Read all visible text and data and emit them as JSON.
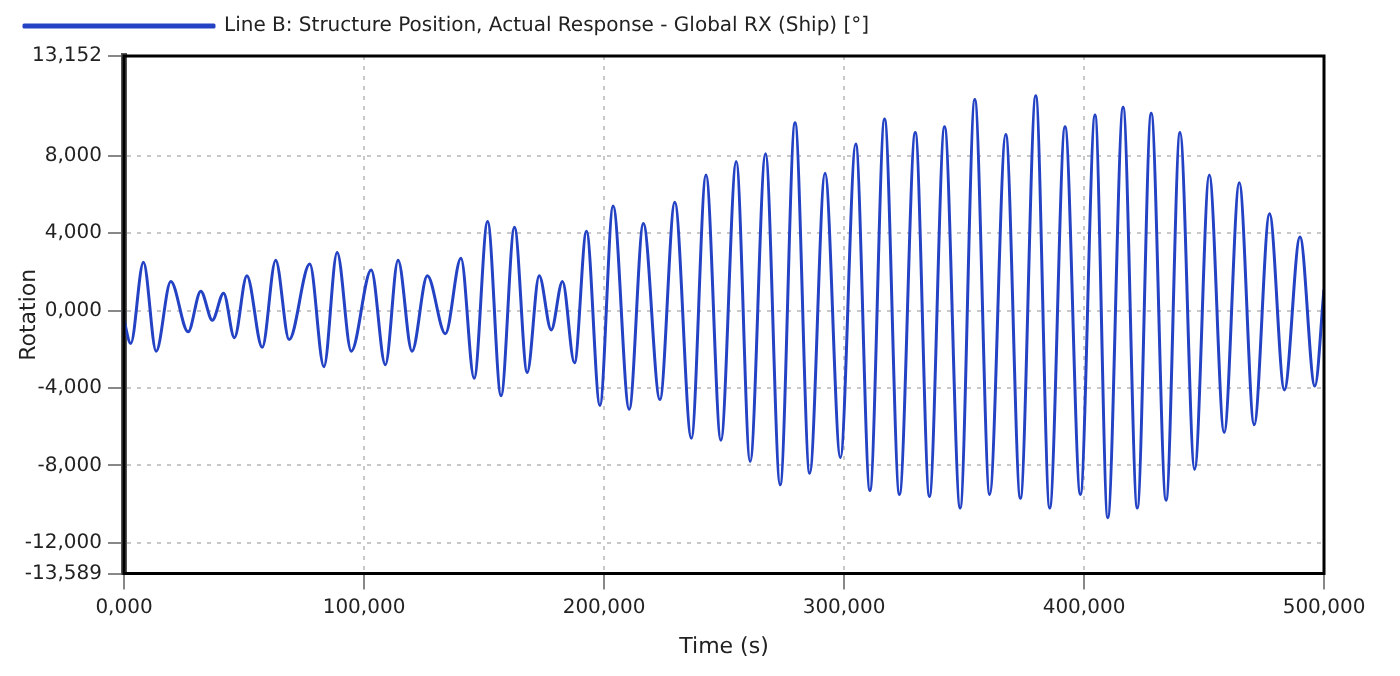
{
  "chart_data": {
    "type": "line",
    "xlabel": "Time (s)",
    "ylabel": "Rotation",
    "x": [
      0,
      2.8,
      8.1,
      13.4,
      19.5,
      26.7,
      32,
      36.8,
      41.5,
      46,
      51.2,
      57.6,
      63.2,
      68.8,
      77.4,
      83.3,
      88.8,
      94.7,
      103,
      108.9,
      114.2,
      120,
      126.4,
      133.9,
      140.4,
      145.9,
      151.5,
      157.1,
      162.7,
      168,
      173,
      178,
      182.7,
      187.7,
      192.7,
      198.3,
      203.8,
      210.5,
      216.4,
      223.3,
      229.5,
      236.4,
      242.5,
      248.7,
      255.1,
      260.9,
      267.3,
      273.4,
      279.6,
      285.7,
      292.1,
      298.5,
      304.9,
      310.8,
      316.9,
      323.1,
      329.7,
      335.6,
      341.9,
      348.4,
      354.5,
      360.7,
      367.4,
      373.5,
      379.9,
      385.7,
      392.1,
      398.5,
      404.6,
      409.9,
      416.3,
      422.2,
      428,
      434.2,
      440,
      446.1,
      452.2,
      458.4,
      464.7,
      470.9,
      477.3,
      483.5,
      490,
      496.2,
      500
    ],
    "series": [
      {
        "name": "Line B: Structure Position, Actual Response - Global RX (Ship) [°]",
        "color": "#2442c4",
        "values": [
          -0.5,
          -1.7,
          2.5,
          -2.1,
          1.5,
          -1.1,
          1.0,
          -0.5,
          0.9,
          -1.4,
          1.8,
          -1.9,
          2.6,
          -1.5,
          2.4,
          -2.9,
          3.0,
          -2.1,
          2.1,
          -2.8,
          2.6,
          -2.1,
          1.8,
          -1.2,
          2.7,
          -3.5,
          4.6,
          -4.4,
          4.3,
          -3.2,
          1.8,
          -1.0,
          1.5,
          -2.7,
          4.1,
          -4.9,
          5.4,
          -5.1,
          4.5,
          -4.6,
          5.6,
          -6.6,
          7.0,
          -6.7,
          7.7,
          -7.8,
          8.1,
          -9.0,
          9.7,
          -8.4,
          7.1,
          -7.6,
          8.6,
          -9.3,
          9.9,
          -9.5,
          9.2,
          -9.6,
          9.5,
          -10.2,
          10.9,
          -9.5,
          9.1,
          -9.7,
          11.1,
          -10.2,
          9.5,
          -9.5,
          10.1,
          -10.7,
          10.5,
          -10.2,
          10.2,
          -9.8,
          9.2,
          -8.2,
          7.0,
          -6.3,
          6.6,
          -5.9,
          5.0,
          -4.1,
          3.8,
          -3.9,
          1.1
        ]
      }
    ],
    "xlim": [
      0,
      500
    ],
    "xticks": [
      {
        "value": 0,
        "label": "0,000"
      },
      {
        "value": 100,
        "label": "100,000"
      },
      {
        "value": 200,
        "label": "200,000"
      },
      {
        "value": 300,
        "label": "300,000"
      },
      {
        "value": 400,
        "label": "400,000"
      },
      {
        "value": 500,
        "label": "500,000"
      }
    ],
    "ylim": [
      -13.589,
      13.152
    ],
    "yticks": [
      {
        "value": -13.589,
        "label": "-13,589"
      },
      {
        "value": -12,
        "label": "-12,000"
      },
      {
        "value": -8,
        "label": "-8,000"
      },
      {
        "value": -4,
        "label": "-4,000"
      },
      {
        "value": 0,
        "label": "0,000"
      },
      {
        "value": 4,
        "label": "4,000"
      },
      {
        "value": 8,
        "label": "8,000"
      },
      {
        "value": 13.152,
        "label": "13,152"
      }
    ],
    "grid": true,
    "legend": "top left",
    "marker": "none",
    "line_style": "solid"
  }
}
